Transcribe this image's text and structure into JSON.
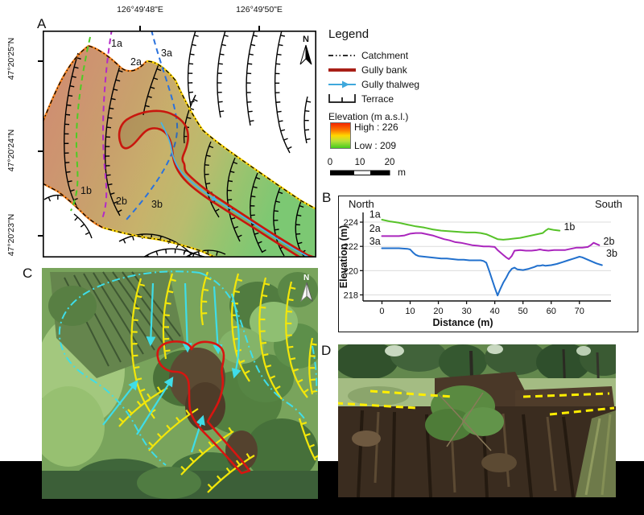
{
  "figure": {
    "panel_a": {
      "label": "A",
      "north_label": "N",
      "lon_ticks": [
        "126°49'48\"E",
        "126°49'50\"E"
      ],
      "lat_ticks": [
        "47°20'25\"N",
        "47°20'24\"N",
        "47°20'23\"N"
      ],
      "transects": {
        "t1a": "1a",
        "t2a": "2a",
        "t3a": "3a",
        "t1b": "1b",
        "t2b": "2b",
        "t3b": "3b"
      }
    },
    "legend": {
      "title": "Legend",
      "items": [
        {
          "key": "catchment",
          "label": "Catchment"
        },
        {
          "key": "gully-bank",
          "label": "Gully bank"
        },
        {
          "key": "gully-thalweg",
          "label": "Gully thalweg"
        },
        {
          "key": "terrace",
          "label": "Terrace"
        }
      ],
      "elevation_title": "Elevation (m a.s.l.)",
      "elevation_high": "High : 226",
      "elevation_low": "Low : 209",
      "scale_ticks": [
        "0",
        "10",
        "20"
      ],
      "scale_unit": "m"
    },
    "panel_b": {
      "label": "B"
    },
    "panel_c": {
      "label": "C",
      "north_label": "N"
    },
    "panel_d": {
      "label": "D"
    }
  },
  "colors": {
    "gully_bank": "#c8170e",
    "gully_bank_legend": "#a81f17",
    "gully_thalweg": "#44b5ea",
    "transect_1": "#4ecb24",
    "transect_2": "#b32ac8",
    "transect_3": "#2a72dd",
    "boundary_west": "#f5821e",
    "boundary_east": "#ffd400",
    "terrace_map": "#000000",
    "photo_terrace_yellow": "#f2e60a",
    "photo_boundary_cyan": "#3fdde8",
    "photo_dash_yellow": "#ffee00",
    "elevation_high_color": "#f42500",
    "elevation_low_color": "#46cc1e"
  },
  "chart_data": {
    "type": "line",
    "title": "",
    "xlabel": "Distance (m)",
    "ylabel": "Elevation (m)",
    "x_ticks": [
      0,
      10,
      20,
      30,
      40,
      50,
      60,
      70
    ],
    "y_ticks": [
      218,
      220,
      222,
      224
    ],
    "xlim": [
      -6.7,
      81.2
    ],
    "ylim": [
      217.5,
      224.8
    ],
    "grid": true,
    "legend_position": "none",
    "annotations": {
      "top_left": "North",
      "top_right": "South"
    },
    "series": [
      {
        "name": "Profile 1 (1a–1b)",
        "color": "#56c228",
        "start_label": "1a",
        "start_label_at": [
          -2.5,
          224.62
        ],
        "end_label": "1b",
        "end_label_at": [
          64.5,
          223.62
        ],
        "points": [
          [
            0,
            224.2
          ],
          [
            3,
            224.05
          ],
          [
            6,
            223.95
          ],
          [
            9,
            223.8
          ],
          [
            12,
            223.65
          ],
          [
            15,
            223.55
          ],
          [
            18,
            223.4
          ],
          [
            21,
            223.3
          ],
          [
            24,
            223.25
          ],
          [
            27,
            223.2
          ],
          [
            30,
            223.15
          ],
          [
            33,
            223.15
          ],
          [
            35,
            223.1
          ],
          [
            37,
            223.0
          ],
          [
            39,
            222.8
          ],
          [
            41,
            222.6
          ],
          [
            43,
            222.55
          ],
          [
            45,
            222.6
          ],
          [
            47,
            222.65
          ],
          [
            49,
            222.7
          ],
          [
            51,
            222.8
          ],
          [
            53,
            222.9
          ],
          [
            55,
            223.0
          ],
          [
            57,
            223.1
          ],
          [
            58,
            223.3
          ],
          [
            59,
            223.45
          ],
          [
            60,
            223.4
          ],
          [
            61,
            223.35
          ],
          [
            63,
            223.3
          ]
        ]
      },
      {
        "name": "Profile 2 (2a–2b)",
        "color": "#aa26bd",
        "start_label": "2a",
        "start_label_at": [
          -2.5,
          223.48
        ],
        "end_label": "2b",
        "end_label_at": [
          78.5,
          222.42
        ],
        "points": [
          [
            0,
            222.85
          ],
          [
            3,
            222.85
          ],
          [
            6,
            222.85
          ],
          [
            8,
            222.9
          ],
          [
            10,
            223.05
          ],
          [
            12,
            223.1
          ],
          [
            14,
            223.1
          ],
          [
            16,
            223.0
          ],
          [
            18,
            222.9
          ],
          [
            20,
            222.75
          ],
          [
            22,
            222.6
          ],
          [
            24,
            222.5
          ],
          [
            26,
            222.35
          ],
          [
            28,
            222.3
          ],
          [
            30,
            222.2
          ],
          [
            32,
            222.1
          ],
          [
            34,
            222.05
          ],
          [
            36,
            222.0
          ],
          [
            38,
            222.0
          ],
          [
            40,
            221.95
          ],
          [
            41,
            221.7
          ],
          [
            42,
            221.5
          ],
          [
            43,
            221.3
          ],
          [
            44,
            221.1
          ],
          [
            45,
            220.95
          ],
          [
            46,
            221.2
          ],
          [
            47,
            221.65
          ],
          [
            49,
            221.7
          ],
          [
            51,
            221.65
          ],
          [
            53,
            221.65
          ],
          [
            55,
            221.7
          ],
          [
            56,
            221.75
          ],
          [
            57,
            221.7
          ],
          [
            59,
            221.65
          ],
          [
            61,
            221.7
          ],
          [
            63,
            221.7
          ],
          [
            65,
            221.7
          ],
          [
            67,
            221.8
          ],
          [
            69,
            221.9
          ],
          [
            71,
            221.9
          ],
          [
            73,
            221.95
          ],
          [
            74,
            222.1
          ],
          [
            75,
            222.3
          ],
          [
            76,
            222.2
          ],
          [
            77,
            222.1
          ]
        ]
      },
      {
        "name": "Profile 3 (3a–3b)",
        "color": "#2170cd",
        "start_label": "3a",
        "start_label_at": [
          -2.5,
          222.42
        ],
        "end_label": "3b",
        "end_label_at": [
          79.5,
          221.42
        ],
        "points": [
          [
            0,
            221.85
          ],
          [
            3,
            221.85
          ],
          [
            6,
            221.85
          ],
          [
            9,
            221.8
          ],
          [
            10,
            221.75
          ],
          [
            11,
            221.5
          ],
          [
            12,
            221.3
          ],
          [
            13,
            221.2
          ],
          [
            15,
            221.15
          ],
          [
            17,
            221.1
          ],
          [
            19,
            221.05
          ],
          [
            21,
            221.0
          ],
          [
            23,
            221.0
          ],
          [
            25,
            220.95
          ],
          [
            27,
            220.9
          ],
          [
            29,
            220.9
          ],
          [
            31,
            220.85
          ],
          [
            33,
            220.85
          ],
          [
            35,
            220.85
          ],
          [
            36,
            220.8
          ],
          [
            37,
            220.65
          ],
          [
            38,
            220.0
          ],
          [
            39,
            219.3
          ],
          [
            40,
            218.6
          ],
          [
            41,
            217.95
          ],
          [
            42,
            218.5
          ],
          [
            43,
            219.0
          ],
          [
            44,
            219.4
          ],
          [
            45,
            219.85
          ],
          [
            46,
            220.15
          ],
          [
            47,
            220.25
          ],
          [
            48,
            220.1
          ],
          [
            50,
            220.05
          ],
          [
            52,
            220.15
          ],
          [
            54,
            220.3
          ],
          [
            55,
            220.4
          ],
          [
            56,
            220.4
          ],
          [
            57,
            220.45
          ],
          [
            58,
            220.4
          ],
          [
            60,
            220.45
          ],
          [
            62,
            220.55
          ],
          [
            64,
            220.7
          ],
          [
            66,
            220.85
          ],
          [
            68,
            221.0
          ],
          [
            70,
            221.15
          ],
          [
            71,
            221.1
          ],
          [
            72,
            221.0
          ],
          [
            74,
            220.8
          ],
          [
            76,
            220.6
          ],
          [
            78,
            220.45
          ]
        ]
      }
    ]
  }
}
